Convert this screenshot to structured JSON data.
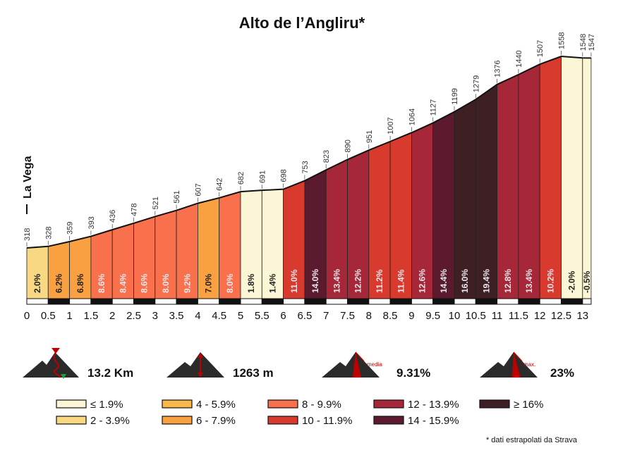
{
  "chart_data": {
    "type": "area",
    "title": "Alto de l’Angliru*",
    "start_label": "La Vega",
    "x_unit": "km",
    "xlim": [
      0,
      13.2
    ],
    "ylim": [
      200,
      1600
    ],
    "km_ticks": [
      "0",
      "0.5",
      "1",
      "1.5",
      "2",
      "2.5",
      "3",
      "3.5",
      "4",
      "4.5",
      "5",
      "5.5",
      "6",
      "6.5",
      "7",
      "7.5",
      "8",
      "8.5",
      "9",
      "9.5",
      "10",
      "10.5",
      "11",
      "11.5",
      "12",
      "12.5",
      "13"
    ],
    "points": [
      {
        "km": 0.0,
        "alt": 318,
        "label": "318"
      },
      {
        "km": 0.5,
        "alt": 328,
        "label": "328"
      },
      {
        "km": 1.0,
        "alt": 359,
        "label": "359"
      },
      {
        "km": 1.5,
        "alt": 393,
        "label": "393"
      },
      {
        "km": 2.0,
        "alt": 436,
        "label": "436"
      },
      {
        "km": 2.5,
        "alt": 478,
        "label": "478"
      },
      {
        "km": 3.0,
        "alt": 521,
        "label": "521"
      },
      {
        "km": 3.5,
        "alt": 561,
        "label": "561"
      },
      {
        "km": 4.0,
        "alt": 607,
        "label": "607"
      },
      {
        "km": 4.5,
        "alt": 642,
        "label": "642"
      },
      {
        "km": 5.0,
        "alt": 682,
        "label": "682"
      },
      {
        "km": 5.5,
        "alt": 691,
        "label": "691"
      },
      {
        "km": 6.0,
        "alt": 698,
        "label": "698"
      },
      {
        "km": 6.5,
        "alt": 753,
        "label": "753"
      },
      {
        "km": 7.0,
        "alt": 823,
        "label": "823"
      },
      {
        "km": 7.5,
        "alt": 890,
        "label": "890"
      },
      {
        "km": 8.0,
        "alt": 951,
        "label": "951"
      },
      {
        "km": 8.5,
        "alt": 1007,
        "label": "1007"
      },
      {
        "km": 9.0,
        "alt": 1064,
        "label": "1064"
      },
      {
        "km": 9.5,
        "alt": 1127,
        "label": "1127"
      },
      {
        "km": 10.0,
        "alt": 1199,
        "label": "1199"
      },
      {
        "km": 10.5,
        "alt": 1279,
        "label": "1279"
      },
      {
        "km": 11.0,
        "alt": 1376,
        "label": "1376"
      },
      {
        "km": 11.5,
        "alt": 1440,
        "label": "1440"
      },
      {
        "km": 12.0,
        "alt": 1507,
        "label": "1507"
      },
      {
        "km": 12.5,
        "alt": 1558,
        "label": "1558"
      },
      {
        "km": 13.0,
        "alt": 1548,
        "label": "1548"
      },
      {
        "km": 13.2,
        "alt": 1547,
        "label": "1547"
      }
    ],
    "segments": [
      {
        "grade": "2.0%",
        "color": "#f8d882"
      },
      {
        "grade": "6.2%",
        "color": "#f9a040"
      },
      {
        "grade": "6.8%",
        "color": "#f9a040"
      },
      {
        "grade": "8.6%",
        "color": "#f8704c"
      },
      {
        "grade": "8.4%",
        "color": "#f8704c"
      },
      {
        "grade": "8.6%",
        "color": "#f8704c"
      },
      {
        "grade": "8.0%",
        "color": "#f8704c"
      },
      {
        "grade": "9.2%",
        "color": "#f8704c"
      },
      {
        "grade": "7.0%",
        "color": "#f9a040"
      },
      {
        "grade": "8.0%",
        "color": "#f8704c"
      },
      {
        "grade": "1.8%",
        "color": "#fbf6d6"
      },
      {
        "grade": "1.4%",
        "color": "#fbf6d6"
      },
      {
        "grade": "11.0%",
        "color": "#d93a2e"
      },
      {
        "grade": "14.0%",
        "color": "#5c1a2e"
      },
      {
        "grade": "13.4%",
        "color": "#a52738"
      },
      {
        "grade": "12.2%",
        "color": "#a52738"
      },
      {
        "grade": "11.2%",
        "color": "#d93a2e"
      },
      {
        "grade": "11.4%",
        "color": "#d93a2e"
      },
      {
        "grade": "12.6%",
        "color": "#a52738"
      },
      {
        "grade": "14.4%",
        "color": "#5c1a2e"
      },
      {
        "grade": "16.0%",
        "color": "#3e2024"
      },
      {
        "grade": "19.4%",
        "color": "#3e2024"
      },
      {
        "grade": "12.8%",
        "color": "#a52738"
      },
      {
        "grade": "13.4%",
        "color": "#a52738"
      },
      {
        "grade": "10.2%",
        "color": "#d93a2e"
      },
      {
        "grade": "-2.0%",
        "color": "#fbf6d6"
      },
      {
        "grade": "-0.5%",
        "color": "#fbf6d6"
      }
    ]
  },
  "stats": {
    "distance": "13.2 Km",
    "elevation_gain": "1263 m",
    "avg_grade": "9.31%",
    "max_grade": "23%",
    "avg_tag": "media",
    "max_tag": "max."
  },
  "legend": [
    {
      "label": "≤ 1.9%",
      "color": "#fbf6d6"
    },
    {
      "label": "4 - 5.9%",
      "color": "#f9b84a"
    },
    {
      "label": "8 - 9.9%",
      "color": "#f8704c"
    },
    {
      "label": "12 - 13.9%",
      "color": "#a52738"
    },
    {
      "label": "≥ 16%",
      "color": "#3e2024"
    },
    {
      "label": "2 - 3.9%",
      "color": "#f8d882"
    },
    {
      "label": "6 - 7.9%",
      "color": "#f9a040"
    },
    {
      "label": "10 - 11.9%",
      "color": "#d93a2e"
    },
    {
      "label": "14 - 15.9%",
      "color": "#5c1a2e"
    }
  ],
  "footnote": "* dati estrapolati da Strava"
}
